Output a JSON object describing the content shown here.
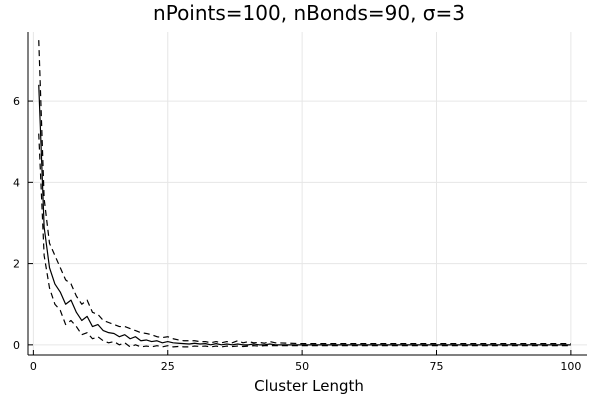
{
  "chart_data": {
    "type": "line",
    "title": "nPoints=100, nBonds=90, σ=3",
    "xlabel": "Cluster Length",
    "ylabel": "",
    "xlim": [
      -1,
      103
    ],
    "ylim": [
      -0.25,
      7.7
    ],
    "xticks": [
      0,
      25,
      50,
      75,
      100
    ],
    "yticks": [
      0,
      2,
      4,
      6
    ],
    "grid": true,
    "legend": "none",
    "series": [
      {
        "style": "solid",
        "color": "#000000",
        "x": [
          1,
          2,
          3,
          4,
          5,
          6,
          7,
          8,
          9,
          10,
          11,
          12,
          13,
          14,
          15,
          16,
          17,
          18,
          19,
          20,
          21,
          22,
          23,
          24,
          25,
          26,
          27,
          28,
          29,
          30,
          31,
          32,
          33,
          34,
          35,
          36,
          37,
          38,
          39,
          40,
          41,
          42,
          43,
          44,
          45,
          50,
          60,
          70,
          80,
          90,
          100
        ],
        "y": [
          6.4,
          2.9,
          1.9,
          1.5,
          1.3,
          1.0,
          1.1,
          0.8,
          0.6,
          0.7,
          0.45,
          0.5,
          0.35,
          0.3,
          0.28,
          0.2,
          0.25,
          0.15,
          0.2,
          0.1,
          0.12,
          0.08,
          0.1,
          0.05,
          0.08,
          0.05,
          0.04,
          0.03,
          0.02,
          0.04,
          0.02,
          0.03,
          0.0,
          0.03,
          0.0,
          0.02,
          0.0,
          0.02,
          0.0,
          0.0,
          0.02,
          0.0,
          0.0,
          0.02,
          0.0,
          0.0,
          0.0,
          0.0,
          0.0,
          0.0,
          0.0
        ]
      },
      {
        "style": "dashed",
        "color": "#000000",
        "x": [
          1,
          2,
          3,
          4,
          5,
          6,
          7,
          8,
          9,
          10,
          11,
          12,
          13,
          14,
          15,
          16,
          17,
          18,
          19,
          20,
          21,
          22,
          23,
          24,
          25,
          26,
          27,
          28,
          29,
          30,
          31,
          32,
          33,
          34,
          35,
          36,
          37,
          38,
          39,
          40,
          41,
          42,
          43,
          44,
          45,
          50,
          60,
          70,
          80,
          90,
          100
        ],
        "y": [
          7.5,
          3.6,
          2.5,
          2.2,
          1.9,
          1.6,
          1.5,
          1.2,
          1.0,
          1.1,
          0.8,
          0.75,
          0.6,
          0.55,
          0.5,
          0.45,
          0.45,
          0.4,
          0.35,
          0.3,
          0.28,
          0.25,
          0.2,
          0.18,
          0.2,
          0.15,
          0.12,
          0.1,
          0.1,
          0.1,
          0.08,
          0.08,
          0.05,
          0.08,
          0.05,
          0.08,
          0.05,
          0.1,
          0.05,
          0.08,
          0.05,
          0.06,
          0.04,
          0.08,
          0.05,
          0.03,
          0.03,
          0.03,
          0.03,
          0.03,
          0.03
        ]
      },
      {
        "style": "dashed",
        "color": "#000000",
        "x": [
          1,
          2,
          3,
          4,
          5,
          6,
          7,
          8,
          9,
          10,
          11,
          12,
          13,
          14,
          15,
          16,
          17,
          18,
          19,
          20,
          21,
          22,
          23,
          24,
          25,
          26,
          27,
          28,
          29,
          30,
          31,
          32,
          33,
          34,
          35,
          36,
          37,
          38,
          39,
          40,
          41,
          42,
          43,
          44,
          45,
          50,
          60,
          70,
          80,
          90,
          100
        ],
        "y": [
          5.2,
          2.2,
          1.4,
          1.0,
          0.85,
          0.5,
          0.6,
          0.45,
          0.25,
          0.3,
          0.15,
          0.2,
          0.1,
          0.05,
          0.08,
          0.0,
          0.05,
          -0.05,
          0.0,
          -0.05,
          -0.03,
          -0.05,
          -0.02,
          -0.05,
          -0.02,
          -0.05,
          -0.04,
          -0.05,
          -0.05,
          -0.03,
          -0.04,
          -0.03,
          -0.05,
          -0.03,
          -0.05,
          -0.03,
          -0.04,
          -0.03,
          -0.04,
          -0.03,
          -0.02,
          -0.03,
          -0.02,
          -0.02,
          -0.02,
          -0.02,
          -0.02,
          -0.02,
          -0.02,
          -0.02,
          -0.02
        ]
      }
    ]
  }
}
